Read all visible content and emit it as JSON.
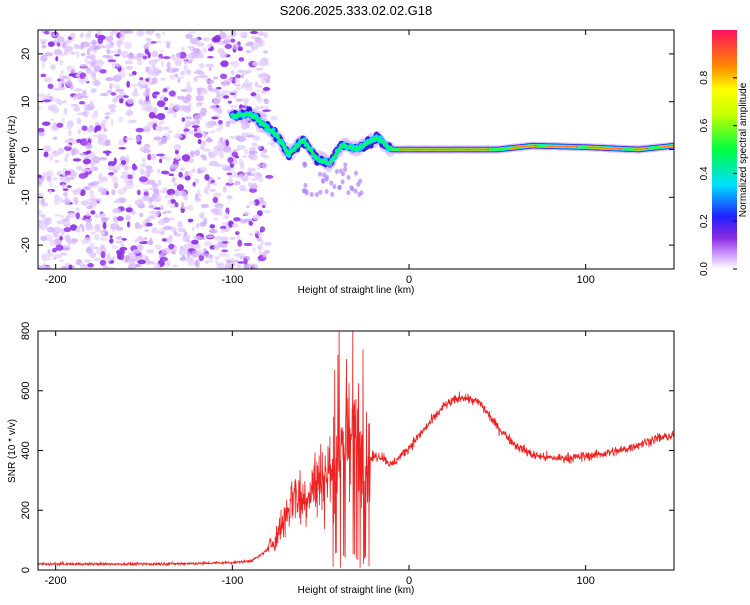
{
  "figure": {
    "title": "S206.2025.333.02.02.G18"
  },
  "chart_data": [
    {
      "type": "heatmap",
      "title": "S206.2025.333.02.02.G18",
      "xlabel": "Height of straight line (km)",
      "ylabel": "Frequency (Hz)",
      "xlim": [
        -210,
        150
      ],
      "ylim": [
        -25,
        25
      ],
      "x_ticks": [
        -200,
        -100,
        0,
        100
      ],
      "y_ticks": [
        -20,
        -10,
        0,
        10,
        20
      ],
      "colorbar": {
        "label": "Normalized spectral amplitude",
        "range": [
          0,
          1
        ],
        "ticks": [
          0.0,
          0.2,
          0.4,
          0.6,
          0.8
        ],
        "tick_labels": [
          "0.0",
          "0.2",
          "0.4",
          "0.6",
          "0.8"
        ]
      },
      "ridge": {
        "description_points": [
          {
            "x": -100,
            "y": 7
          },
          {
            "x": -90,
            "y": 7.5
          },
          {
            "x": -85,
            "y": 6
          },
          {
            "x": -75,
            "y": 3
          },
          {
            "x": -68,
            "y": -1
          },
          {
            "x": -60,
            "y": 2
          },
          {
            "x": -52,
            "y": -2
          },
          {
            "x": -45,
            "y": -3
          },
          {
            "x": -38,
            "y": 1
          },
          {
            "x": -30,
            "y": 0
          },
          {
            "x": -18,
            "y": 2.5
          },
          {
            "x": -10,
            "y": 0
          },
          {
            "x": 0,
            "y": 0
          },
          {
            "x": 50,
            "y": 0
          },
          {
            "x": 70,
            "y": 0.8
          },
          {
            "x": 100,
            "y": 0.5
          },
          {
            "x": 130,
            "y": 0
          },
          {
            "x": 150,
            "y": 0.8
          }
        ],
        "noise_region_x": [
          -210,
          -80
        ]
      }
    },
    {
      "type": "line",
      "xlabel": "Height of straight line (km)",
      "ylabel": "SNR (10 * v/v)",
      "xlim": [
        -210,
        150
      ],
      "ylim": [
        0,
        800
      ],
      "x_ticks": [
        -200,
        -100,
        0,
        100
      ],
      "y_ticks": [
        0,
        200,
        400,
        600,
        800
      ],
      "series": [
        {
          "name": "SNR",
          "color": "#ee2222",
          "x": [
            -210,
            -180,
            -150,
            -120,
            -100,
            -90,
            -85,
            -80,
            -75,
            -70,
            -65,
            -60,
            -55,
            -50,
            -45,
            -40,
            -35,
            -30,
            -25,
            -20,
            -15,
            -10,
            -5,
            0,
            10,
            20,
            30,
            40,
            50,
            60,
            70,
            80,
            90,
            100,
            110,
            120,
            130,
            140,
            150
          ],
          "values": [
            20,
            20,
            20,
            22,
            25,
            30,
            45,
            70,
            110,
            180,
            260,
            230,
            280,
            300,
            330,
            380,
            480,
            420,
            350,
            380,
            380,
            350,
            380,
            410,
            480,
            550,
            580,
            560,
            480,
            420,
            385,
            375,
            375,
            380,
            390,
            400,
            420,
            440,
            450
          ]
        }
      ]
    }
  ]
}
